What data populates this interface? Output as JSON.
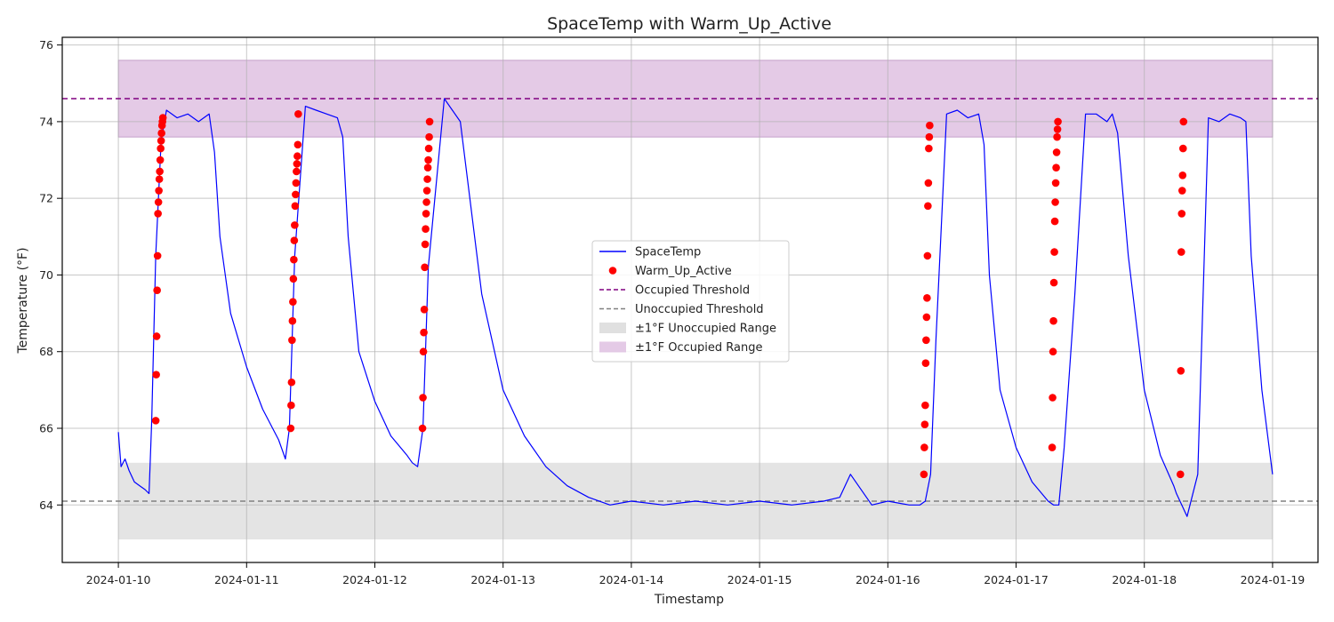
{
  "chart_data": {
    "type": "line",
    "title": "SpaceTemp with Warm_Up_Active",
    "xlabel": "Timestamp",
    "ylabel": "Temperature (°F)",
    "x_ticks": [
      "2024-01-10",
      "2024-01-11",
      "2024-01-12",
      "2024-01-13",
      "2024-01-14",
      "2024-01-15",
      "2024-01-16",
      "2024-01-17",
      "2024-01-18",
      "2024-01-19"
    ],
    "y_ticks": [
      64,
      66,
      68,
      70,
      72,
      74,
      76
    ],
    "xlim": [
      "2024-01-09T13:30",
      "2024-01-19T08:30"
    ],
    "ylim": [
      62.5,
      76.2
    ],
    "grid": true,
    "legend_position": "center",
    "colors": {
      "space_temp": "#0000ff",
      "warm_up": "#ff0000",
      "occupied_threshold": "#800080",
      "unoccupied_threshold": "#808080",
      "unoccupied_band": "#d3d3d3",
      "occupied_band": "#d8b4dc"
    },
    "thresholds": {
      "occupied": 74.6,
      "unoccupied": 64.1
    },
    "bands": [
      {
        "name": "±1°F Unoccupied Range",
        "y0": 63.1,
        "y1": 65.1,
        "x0": "2024-01-10T00:00",
        "x1": "2024-01-19T00:00"
      },
      {
        "name": "±1°F Occupied Range",
        "y0": 73.6,
        "y1": 75.6,
        "x0": "2024-01-10T00:00",
        "x1": "2024-01-19T00:00"
      }
    ],
    "series": [
      {
        "name": "SpaceTemp",
        "x": [
          "2024-01-10T00:00",
          "2024-01-10T00:30",
          "2024-01-10T01:15",
          "2024-01-10T02:00",
          "2024-01-10T03:00",
          "2024-01-10T04:00",
          "2024-01-10T05:00",
          "2024-01-10T05:45",
          "2024-01-10T06:15",
          "2024-01-10T07:00",
          "2024-01-10T08:00",
          "2024-01-10T09:00",
          "2024-01-10T11:00",
          "2024-01-10T13:00",
          "2024-01-10T15:00",
          "2024-01-10T17:00",
          "2024-01-10T18:00",
          "2024-01-10T19:00",
          "2024-01-10T21:00",
          "2024-01-11T00:00",
          "2024-01-11T03:00",
          "2024-01-11T06:00",
          "2024-01-11T06:45",
          "2024-01-11T07:15",
          "2024-01-11T08:00",
          "2024-01-11T09:00",
          "2024-01-11T11:00",
          "2024-01-11T13:00",
          "2024-01-11T15:00",
          "2024-01-11T17:00",
          "2024-01-11T18:00",
          "2024-01-11T19:00",
          "2024-01-11T21:00",
          "2024-01-12T00:00",
          "2024-01-12T03:00",
          "2024-01-12T06:00",
          "2024-01-12T07:00",
          "2024-01-12T08:00",
          "2024-01-12T09:00",
          "2024-01-12T10:00",
          "2024-01-12T13:00",
          "2024-01-12T16:00",
          "2024-01-12T20:00",
          "2024-01-13T00:00",
          "2024-01-13T04:00",
          "2024-01-13T08:00",
          "2024-01-13T12:00",
          "2024-01-13T16:00",
          "2024-01-13T20:00",
          "2024-01-14T00:00",
          "2024-01-14T06:00",
          "2024-01-14T12:00",
          "2024-01-14T18:00",
          "2024-01-15T00:00",
          "2024-01-15T06:00",
          "2024-01-15T12:00",
          "2024-01-15T15:00",
          "2024-01-15T17:00",
          "2024-01-15T21:00",
          "2024-01-16T00:00",
          "2024-01-16T04:00",
          "2024-01-16T06:00",
          "2024-01-16T07:00",
          "2024-01-16T08:00",
          "2024-01-16T09:00",
          "2024-01-16T11:00",
          "2024-01-16T13:00",
          "2024-01-16T15:00",
          "2024-01-16T17:00",
          "2024-01-16T18:00",
          "2024-01-16T19:00",
          "2024-01-16T21:00",
          "2024-01-17T00:00",
          "2024-01-17T03:00",
          "2024-01-17T06:00",
          "2024-01-17T07:00",
          "2024-01-17T08:00",
          "2024-01-17T09:00",
          "2024-01-17T11:00",
          "2024-01-17T13:00",
          "2024-01-17T15:00",
          "2024-01-17T17:00",
          "2024-01-17T18:00",
          "2024-01-17T19:00",
          "2024-01-17T21:00",
          "2024-01-18T00:00",
          "2024-01-18T03:00",
          "2024-01-18T05:30",
          "2024-01-18T06:00",
          "2024-01-18T07:00",
          "2024-01-18T08:00",
          "2024-01-18T10:00",
          "2024-01-18T12:00",
          "2024-01-18T14:00",
          "2024-01-18T16:00",
          "2024-01-18T18:00",
          "2024-01-18T19:00",
          "2024-01-18T20:00",
          "2024-01-18T22:00",
          "2024-01-19T00:00"
        ],
        "values": [
          65.9,
          65.0,
          65.2,
          64.9,
          64.6,
          64.5,
          64.4,
          64.3,
          66.2,
          70.5,
          73.5,
          74.3,
          74.1,
          74.2,
          74.0,
          74.2,
          73.2,
          71.0,
          69.0,
          67.6,
          66.5,
          65.7,
          65.4,
          65.2,
          66.0,
          70.5,
          74.4,
          74.3,
          74.2,
          74.1,
          73.6,
          71.0,
          68.0,
          66.7,
          65.8,
          65.3,
          65.1,
          65.0,
          66.0,
          70.2,
          74.6,
          74.0,
          69.5,
          67.0,
          65.8,
          65.0,
          64.5,
          64.2,
          64.0,
          64.1,
          64.0,
          64.1,
          64.0,
          64.1,
          64.0,
          64.1,
          64.2,
          64.8,
          64.0,
          64.1,
          64.0,
          64.0,
          64.1,
          64.8,
          68.3,
          74.2,
          74.3,
          74.1,
          74.2,
          73.4,
          70.0,
          67.0,
          65.5,
          64.6,
          64.1,
          64.0,
          64.0,
          65.5,
          69.5,
          74.2,
          74.2,
          74.0,
          74.2,
          73.7,
          70.5,
          67.0,
          65.3,
          64.5,
          64.3,
          64.0,
          63.7,
          64.8,
          74.1,
          74.0,
          74.2,
          74.1,
          74.0,
          70.5,
          67.0,
          64.8
        ]
      },
      {
        "name": "Warm_Up_Active",
        "x": [
          "2024-01-10T07:00",
          "2024-01-10T07:05",
          "2024-01-10T07:10",
          "2024-01-10T07:15",
          "2024-01-10T07:20",
          "2024-01-10T07:25",
          "2024-01-10T07:30",
          "2024-01-10T07:35",
          "2024-01-10T07:40",
          "2024-01-10T07:45",
          "2024-01-10T07:50",
          "2024-01-10T07:55",
          "2024-01-10T08:00",
          "2024-01-10T08:05",
          "2024-01-10T08:10",
          "2024-01-10T08:15",
          "2024-01-10T08:20",
          "2024-01-11T08:15",
          "2024-01-11T08:20",
          "2024-01-11T08:25",
          "2024-01-11T08:30",
          "2024-01-11T08:35",
          "2024-01-11T08:40",
          "2024-01-11T08:45",
          "2024-01-11T08:50",
          "2024-01-11T08:55",
          "2024-01-11T09:00",
          "2024-01-11T09:05",
          "2024-01-11T09:10",
          "2024-01-11T09:15",
          "2024-01-11T09:20",
          "2024-01-11T09:25",
          "2024-01-11T09:30",
          "2024-01-11T09:35",
          "2024-01-11T09:40",
          "2024-01-12T08:55",
          "2024-01-12T09:00",
          "2024-01-12T09:05",
          "2024-01-12T09:10",
          "2024-01-12T09:15",
          "2024-01-12T09:20",
          "2024-01-12T09:25",
          "2024-01-12T09:30",
          "2024-01-12T09:35",
          "2024-01-12T09:40",
          "2024-01-12T09:45",
          "2024-01-12T09:50",
          "2024-01-12T09:55",
          "2024-01-12T10:00",
          "2024-01-12T10:05",
          "2024-01-12T10:10",
          "2024-01-12T10:15",
          "2024-01-16T06:45",
          "2024-01-16T06:50",
          "2024-01-16T06:55",
          "2024-01-16T07:00",
          "2024-01-16T07:05",
          "2024-01-16T07:10",
          "2024-01-16T07:15",
          "2024-01-16T07:20",
          "2024-01-16T07:25",
          "2024-01-16T07:30",
          "2024-01-16T07:35",
          "2024-01-16T07:40",
          "2024-01-16T07:45",
          "2024-01-16T07:50",
          "2024-01-17T06:45",
          "2024-01-17T06:50",
          "2024-01-17T06:55",
          "2024-01-17T07:00",
          "2024-01-17T07:05",
          "2024-01-17T07:10",
          "2024-01-17T07:15",
          "2024-01-17T07:20",
          "2024-01-17T07:25",
          "2024-01-17T07:30",
          "2024-01-17T07:35",
          "2024-01-17T07:40",
          "2024-01-17T07:45",
          "2024-01-17T07:50",
          "2024-01-18T06:45",
          "2024-01-18T06:50",
          "2024-01-18T06:55",
          "2024-01-18T07:00",
          "2024-01-18T07:05",
          "2024-01-18T07:10",
          "2024-01-18T07:15",
          "2024-01-18T07:20"
        ],
        "values": [
          66.2,
          67.4,
          68.4,
          69.6,
          70.5,
          71.6,
          71.9,
          72.2,
          72.5,
          72.7,
          73.0,
          73.3,
          73.5,
          73.7,
          73.9,
          74.0,
          74.1,
          66.0,
          66.6,
          67.2,
          68.3,
          68.8,
          69.3,
          69.9,
          70.4,
          70.9,
          71.3,
          71.8,
          72.1,
          72.4,
          72.7,
          72.9,
          73.1,
          73.4,
          74.2,
          66.0,
          66.8,
          68.0,
          68.5,
          69.1,
          70.2,
          70.8,
          71.2,
          71.6,
          71.9,
          72.2,
          72.5,
          72.8,
          73.0,
          73.3,
          73.6,
          74.0,
          64.8,
          65.5,
          66.1,
          66.6,
          67.7,
          68.3,
          68.9,
          69.4,
          70.5,
          71.8,
          72.4,
          73.3,
          73.6,
          73.9,
          65.5,
          66.8,
          68.0,
          68.8,
          69.8,
          70.6,
          71.4,
          71.9,
          72.4,
          72.8,
          73.2,
          73.6,
          73.8,
          74.0,
          64.8,
          67.5,
          70.6,
          71.6,
          72.2,
          72.6,
          73.3,
          74.0
        ]
      }
    ],
    "legend": [
      {
        "label": "SpaceTemp",
        "kind": "line",
        "color": "#0000ff"
      },
      {
        "label": "Warm_Up_Active",
        "kind": "dot",
        "color": "#ff0000"
      },
      {
        "label": "Occupied Threshold",
        "kind": "dashed",
        "color": "#800080"
      },
      {
        "label": "Unoccupied Threshold",
        "kind": "dashed",
        "color": "#808080"
      },
      {
        "label": "±1°F Unoccupied Range",
        "kind": "patch",
        "color": "#d3d3d3"
      },
      {
        "label": "±1°F Occupied Range",
        "kind": "patch",
        "color": "#d8b4dc"
      }
    ]
  }
}
